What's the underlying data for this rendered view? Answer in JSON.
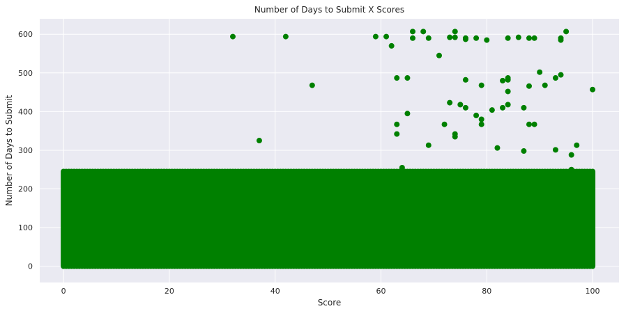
{
  "chart_data": {
    "type": "scatter",
    "title": "Number of Days to Submit X Scores",
    "xlabel": "Score",
    "ylabel": "Number of Days to Submit",
    "xlim": [
      -4.5,
      105
    ],
    "ylim": [
      -42,
      640
    ],
    "xticks": [
      0,
      20,
      40,
      60,
      80,
      100
    ],
    "yticks": [
      0,
      100,
      200,
      300,
      400,
      500,
      600
    ],
    "grid": true,
    "legend": "none",
    "colors": {
      "marker": "#008000",
      "background": "#eaeaf2",
      "grid": "#ffffff"
    },
    "bands": [
      {
        "x_min": 0,
        "x_max": 100,
        "x_step": 0.5,
        "y_min": 0,
        "y_max": 245,
        "note": "dense vertical columns of points at nearly every score"
      }
    ],
    "series": [
      {
        "points": [
          [
            32,
            594
          ],
          [
            42,
            594
          ],
          [
            59,
            594
          ],
          [
            61,
            594
          ],
          [
            62,
            570
          ],
          [
            66,
            607
          ],
          [
            66,
            590
          ],
          [
            68,
            607
          ],
          [
            69,
            590
          ],
          [
            71,
            545
          ],
          [
            73,
            592
          ],
          [
            74,
            592
          ],
          [
            74,
            607
          ],
          [
            76,
            590
          ],
          [
            76,
            587
          ],
          [
            78,
            590
          ],
          [
            80,
            585
          ],
          [
            84,
            590
          ],
          [
            86,
            592
          ],
          [
            88,
            590
          ],
          [
            89,
            590
          ],
          [
            94,
            590
          ],
          [
            94,
            585
          ],
          [
            95,
            607
          ],
          [
            90,
            502
          ],
          [
            93,
            487
          ],
          [
            94,
            495
          ],
          [
            63,
            487
          ],
          [
            65,
            487
          ],
          [
            76,
            482
          ],
          [
            83,
            480
          ],
          [
            84,
            487
          ],
          [
            84,
            482
          ],
          [
            84,
            452
          ],
          [
            47,
            468
          ],
          [
            79,
            468
          ],
          [
            88,
            466
          ],
          [
            91,
            468
          ],
          [
            100,
            457
          ],
          [
            73,
            423
          ],
          [
            75,
            418
          ],
          [
            76,
            410
          ],
          [
            81,
            404
          ],
          [
            83,
            410
          ],
          [
            84,
            418
          ],
          [
            87,
            410
          ],
          [
            65,
            395
          ],
          [
            78,
            390
          ],
          [
            79,
            380
          ],
          [
            79,
            367
          ],
          [
            63,
            367
          ],
          [
            72,
            367
          ],
          [
            88,
            367
          ],
          [
            89,
            367
          ],
          [
            63,
            342
          ],
          [
            74,
            342
          ],
          [
            74,
            335
          ],
          [
            37,
            325
          ],
          [
            69,
            313
          ],
          [
            82,
            306
          ],
          [
            87,
            298
          ],
          [
            93,
            301
          ],
          [
            97,
            313
          ],
          [
            96,
            288
          ],
          [
            64,
            255
          ],
          [
            96,
            250
          ]
        ]
      }
    ]
  }
}
